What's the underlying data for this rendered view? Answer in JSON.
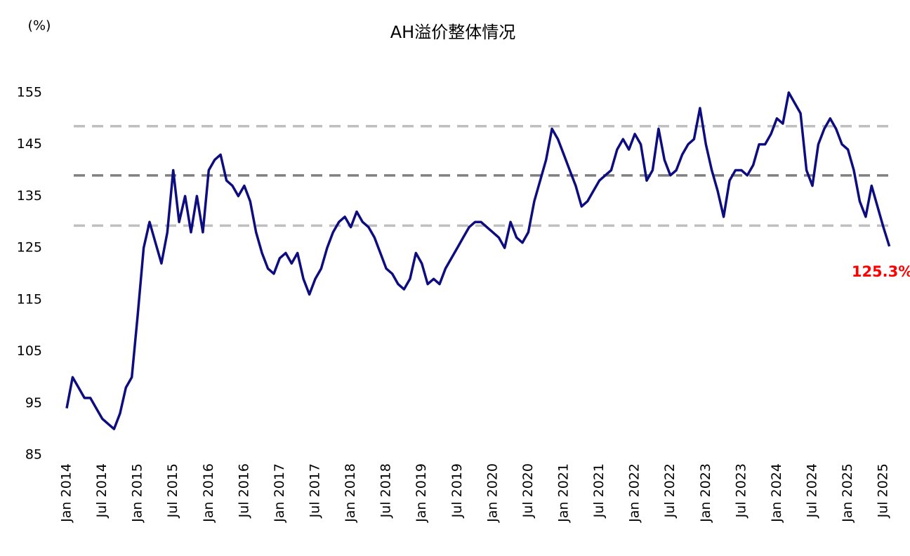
{
  "chart_data": {
    "type": "line",
    "title": "AH溢价整体情况",
    "y_unit_label": "(%)",
    "annotation": "125.3%",
    "ylim": [
      85,
      160
    ],
    "yticks": [
      85,
      95,
      105,
      115,
      125,
      135,
      145,
      155
    ],
    "xlim": [
      "2014-01",
      "2025-09"
    ],
    "xticks": [
      {
        "value": "2014-01",
        "label": "Jan 2014"
      },
      {
        "value": "2014-07",
        "label": "Jul 2014"
      },
      {
        "value": "2015-01",
        "label": "Jan 2015"
      },
      {
        "value": "2015-07",
        "label": "Jul 2015"
      },
      {
        "value": "2016-01",
        "label": "Jan 2016"
      },
      {
        "value": "2016-07",
        "label": "Jul 2016"
      },
      {
        "value": "2017-01",
        "label": "Jan 2017"
      },
      {
        "value": "2017-07",
        "label": "Jul 2017"
      },
      {
        "value": "2018-01",
        "label": "Jan 2018"
      },
      {
        "value": "2018-07",
        "label": "Jul 2018"
      },
      {
        "value": "2019-01",
        "label": "Jan 2019"
      },
      {
        "value": "2019-07",
        "label": "Jul 2019"
      },
      {
        "value": "2020-01",
        "label": "Jan 2020"
      },
      {
        "value": "2020-07",
        "label": "Jul 2020"
      },
      {
        "value": "2021-01",
        "label": "Jan 2021"
      },
      {
        "value": "2021-07",
        "label": "Jul 2021"
      },
      {
        "value": "2022-01",
        "label": "Jan 2022"
      },
      {
        "value": "2022-07",
        "label": "Jul 2022"
      },
      {
        "value": "2023-01",
        "label": "Jan 2023"
      },
      {
        "value": "2023-07",
        "label": "Jul 2023"
      },
      {
        "value": "2024-01",
        "label": "Jan 2024"
      },
      {
        "value": "2024-07",
        "label": "Jul 2024"
      },
      {
        "value": "2025-01",
        "label": "Jan 2025"
      },
      {
        "value": "2025-07",
        "label": "Jul 2025"
      }
    ],
    "reference_lines": [
      {
        "value": 148.5,
        "color": "#bfbfbf"
      },
      {
        "value": 139,
        "color": "#808080"
      },
      {
        "value": 129.3,
        "color": "#bfbfbf"
      }
    ],
    "x": [
      "2014-01",
      "2014-02",
      "2014-03",
      "2014-04",
      "2014-05",
      "2014-06",
      "2014-07",
      "2014-08",
      "2014-09",
      "2014-10",
      "2014-11",
      "2014-12",
      "2015-01",
      "2015-02",
      "2015-03",
      "2015-04",
      "2015-05",
      "2015-06",
      "2015-07",
      "2015-08",
      "2015-09",
      "2015-10",
      "2015-11",
      "2015-12",
      "2016-01",
      "2016-02",
      "2016-03",
      "2016-04",
      "2016-05",
      "2016-06",
      "2016-07",
      "2016-08",
      "2016-09",
      "2016-10",
      "2016-11",
      "2016-12",
      "2017-01",
      "2017-02",
      "2017-03",
      "2017-04",
      "2017-05",
      "2017-06",
      "2017-07",
      "2017-08",
      "2017-09",
      "2017-10",
      "2017-11",
      "2017-12",
      "2018-01",
      "2018-02",
      "2018-03",
      "2018-04",
      "2018-05",
      "2018-06",
      "2018-07",
      "2018-08",
      "2018-09",
      "2018-10",
      "2018-11",
      "2018-12",
      "2019-01",
      "2019-02",
      "2019-03",
      "2019-04",
      "2019-05",
      "2019-06",
      "2019-07",
      "2019-08",
      "2019-09",
      "2019-10",
      "2019-11",
      "2019-12",
      "2020-01",
      "2020-02",
      "2020-03",
      "2020-04",
      "2020-05",
      "2020-06",
      "2020-07",
      "2020-08",
      "2020-09",
      "2020-10",
      "2020-11",
      "2020-12",
      "2021-01",
      "2021-02",
      "2021-03",
      "2021-04",
      "2021-05",
      "2021-06",
      "2021-07",
      "2021-08",
      "2021-09",
      "2021-10",
      "2021-11",
      "2021-12",
      "2022-01",
      "2022-02",
      "2022-03",
      "2022-04",
      "2022-05",
      "2022-06",
      "2022-07",
      "2022-08",
      "2022-09",
      "2022-10",
      "2022-11",
      "2022-12",
      "2023-01",
      "2023-02",
      "2023-03",
      "2023-04",
      "2023-05",
      "2023-06",
      "2023-07",
      "2023-08",
      "2023-09",
      "2023-10",
      "2023-11",
      "2023-12",
      "2024-01",
      "2024-02",
      "2024-03",
      "2024-04",
      "2024-05",
      "2024-06",
      "2024-07",
      "2024-08",
      "2024-09",
      "2024-10",
      "2024-11",
      "2024-12",
      "2025-01",
      "2025-02",
      "2025-03",
      "2025-04",
      "2025-05",
      "2025-06",
      "2025-07",
      "2025-08"
    ],
    "series": [
      {
        "name": "AH溢价",
        "color": "#0d0d80",
        "values": [
          94,
          100,
          98,
          96,
          96,
          94,
          92,
          91,
          90,
          93,
          98,
          100,
          112,
          125,
          130,
          126,
          122,
          128,
          140,
          130,
          135,
          128,
          135,
          128,
          140,
          142,
          143,
          138,
          137,
          135,
          137,
          134,
          128,
          124,
          121,
          120,
          123,
          124,
          122,
          124,
          119,
          116,
          119,
          121,
          125,
          128,
          130,
          131,
          129,
          132,
          130,
          129,
          127,
          124,
          121,
          120,
          118,
          117,
          119,
          124,
          122,
          118,
          119,
          118,
          121,
          123,
          125,
          127,
          129,
          130,
          130,
          129,
          128,
          127,
          125,
          130,
          127,
          126,
          128,
          134,
          138,
          142,
          148,
          146,
          143,
          140,
          137,
          133,
          134,
          136,
          138,
          139,
          140,
          144,
          146,
          144,
          147,
          145,
          138,
          140,
          148,
          142,
          139,
          140,
          143,
          145,
          146,
          152,
          145,
          140,
          136,
          131,
          138,
          140,
          140,
          139,
          141,
          145,
          145,
          147,
          150,
          149,
          155,
          153,
          151,
          140,
          137,
          145,
          148,
          150,
          148,
          145,
          144,
          140,
          134,
          131,
          137,
          133,
          129,
          125.3
        ]
      }
    ]
  }
}
